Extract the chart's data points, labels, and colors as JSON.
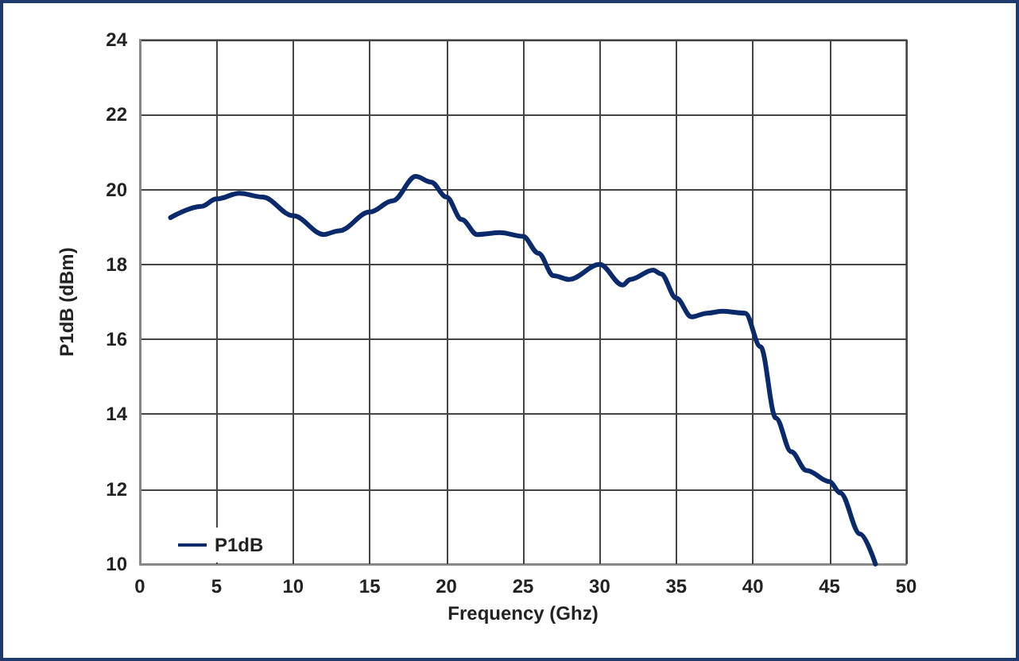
{
  "chart_data": {
    "type": "line",
    "xlabel": "Frequency (Ghz)",
    "ylabel": "P1dB (dBm)",
    "xlim": [
      0,
      50
    ],
    "xticks": [
      0,
      5,
      10,
      15,
      20,
      25,
      30,
      35,
      40,
      45,
      50
    ],
    "ylim": [
      10,
      24
    ],
    "yticks": [
      10,
      12,
      14,
      16,
      18,
      20,
      22,
      24
    ],
    "grid": true,
    "legend": "bottom left",
    "marker": "none",
    "line_style": "solid",
    "series": [
      {
        "name": "P1dB",
        "color": "#0a2a6b",
        "x": [
          2,
          4,
          5,
          6.5,
          8,
          10,
          12,
          13,
          15,
          16.5,
          18,
          19,
          20,
          21,
          22,
          23.5,
          25,
          26,
          27,
          28,
          30,
          31.5,
          32,
          33.5,
          34,
          35,
          36,
          37,
          38,
          39.5,
          40.5,
          41.5,
          42.5,
          43.5,
          45,
          45.7,
          47,
          48
        ],
        "values": [
          19.25,
          19.55,
          19.75,
          19.9,
          19.8,
          19.3,
          18.8,
          18.9,
          19.4,
          19.7,
          20.35,
          20.2,
          19.8,
          19.2,
          18.8,
          18.85,
          18.75,
          18.3,
          17.7,
          17.6,
          18.0,
          17.45,
          17.6,
          17.85,
          17.75,
          17.1,
          16.6,
          16.7,
          16.75,
          16.7,
          15.8,
          13.9,
          13.0,
          12.5,
          12.2,
          11.9,
          10.8,
          10
        ]
      }
    ]
  }
}
